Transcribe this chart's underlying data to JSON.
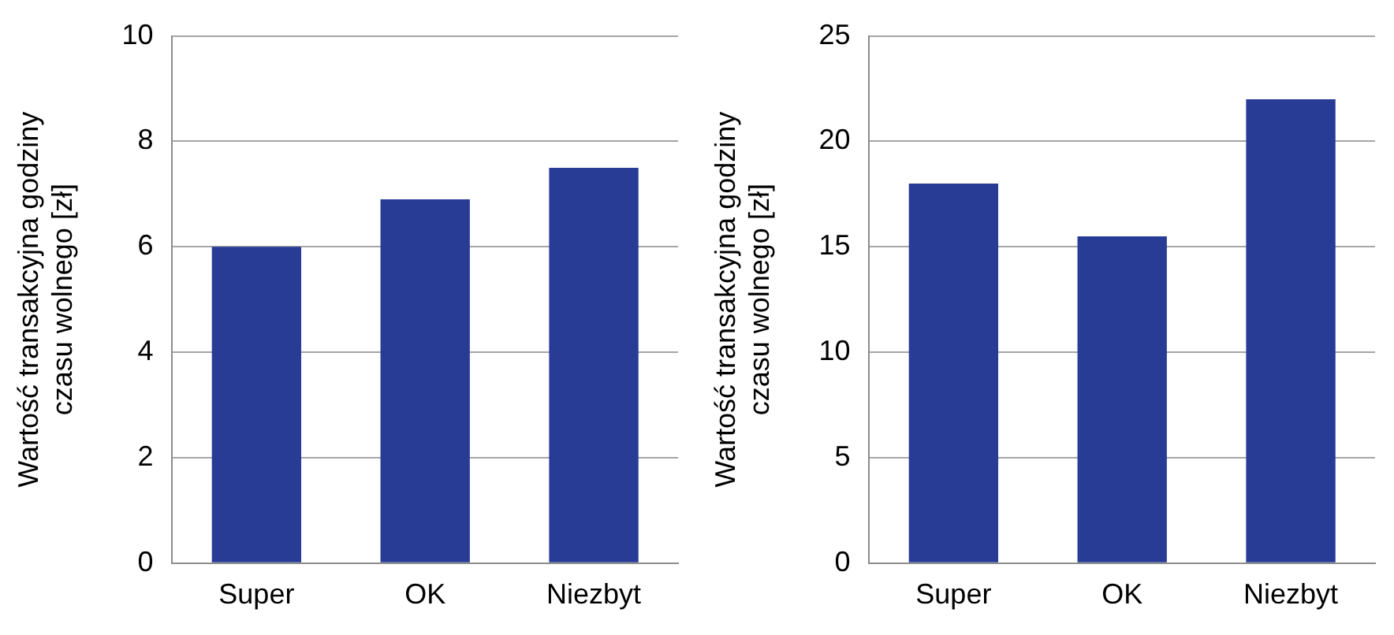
{
  "chart_data": [
    {
      "type": "bar",
      "ylabel": "Wartość transakcyjna godziny\nczasu wolnego [zł]",
      "categories": [
        "Super",
        "OK",
        "Niezbyt"
      ],
      "values": [
        6.0,
        6.9,
        7.5
      ],
      "color": "#283c96",
      "ylim": [
        0,
        10
      ],
      "yticks": [
        0,
        2,
        4,
        6,
        8,
        10
      ],
      "grid": "y",
      "legend": false
    },
    {
      "type": "bar",
      "ylabel": "Wartość transakcyjna godziny\nczasu wolnego [zł]",
      "categories": [
        "Super",
        "OK",
        "Niezbyt"
      ],
      "values": [
        18,
        15.5,
        22
      ],
      "color": "#283c96",
      "ylim": [
        0,
        25
      ],
      "yticks": [
        0,
        5,
        10,
        15,
        20,
        25
      ],
      "grid": "y",
      "legend": false
    }
  ]
}
